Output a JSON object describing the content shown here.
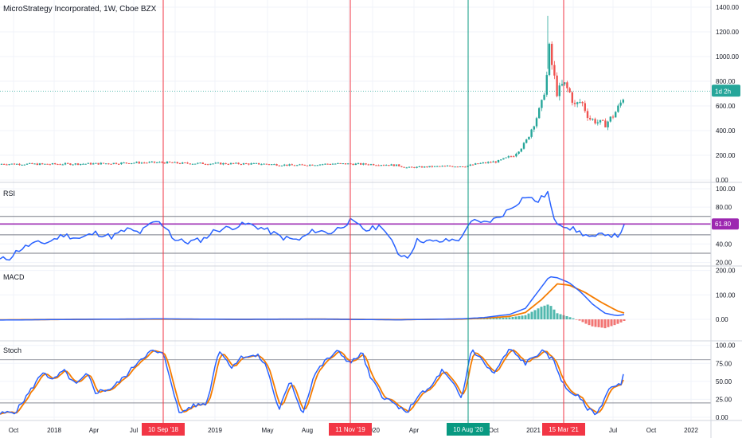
{
  "header": {
    "title": "MicroStrategy Incorporated, 1W, Cboe BZX"
  },
  "colors": {
    "up": "#26a69a",
    "down": "#ef5350",
    "rsi": "#2962ff",
    "rsi_level": "#9c27b0",
    "macd": "#2962ff",
    "signal": "#f57c00",
    "stoch_k": "#2962ff",
    "stoch_d": "#f57c00",
    "marker_red": "#f23645",
    "marker_green": "#089981",
    "grid": "#f0f3fa"
  },
  "price_pane": {
    "y_ticks": [
      "1400.00",
      "1200.00",
      "1000.00",
      "800.00",
      "600.00",
      "400.00",
      "200.00",
      "0.00"
    ],
    "last_label": "1d 2h",
    "last_value": 720
  },
  "rsi_pane": {
    "label": "RSI",
    "y_ticks": [
      "100.00",
      "80.00",
      "60.00",
      "40.00",
      "20.00"
    ],
    "level_label": "61.80",
    "level_value": 61.8,
    "bands": [
      70,
      50,
      30
    ]
  },
  "macd_pane": {
    "label": "MACD",
    "y_ticks": [
      "200.00",
      "100.00",
      "0.00"
    ]
  },
  "stoch_pane": {
    "label": "Stoch",
    "y_ticks": [
      "100.00",
      "75.00",
      "50.00",
      "25.00",
      "0.00"
    ],
    "bands": [
      80,
      20
    ]
  },
  "x_axis": {
    "ticks": [
      "Oct",
      "2018",
      "Apr",
      "Jul",
      "2019",
      "May",
      "Aug",
      "2020",
      "Apr",
      "Oct",
      "2021",
      "Jul",
      "Oct",
      "2022"
    ]
  },
  "markers": [
    {
      "label": "10 Sep '18",
      "color": "red"
    },
    {
      "label": "11 Nov '19",
      "color": "red"
    },
    {
      "label": "10 Aug '20",
      "color": "green"
    },
    {
      "label": "15 Mar '21",
      "color": "red"
    }
  ]
}
